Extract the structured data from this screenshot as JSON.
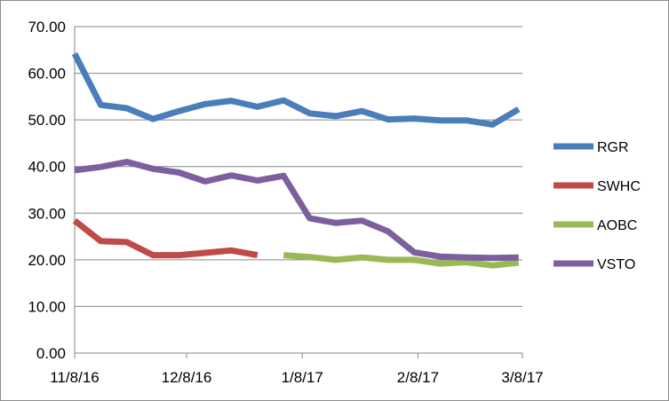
{
  "chart_data": {
    "type": "line",
    "title": "",
    "xlabel": "",
    "ylabel": "",
    "ylim": [
      0,
      70
    ],
    "yticks": [
      "0.00",
      "10.00",
      "20.00",
      "30.00",
      "40.00",
      "50.00",
      "60.00",
      "70.00"
    ],
    "xticks": [
      "11/8/16",
      "12/8/16",
      "1/8/17",
      "2/8/17",
      "3/8/17"
    ],
    "xtick_dates": [
      "2016-11-08",
      "2016-12-08",
      "2017-01-08",
      "2017-02-08",
      "2017-03-08"
    ],
    "xlim": [
      "2016-11-08",
      "2017-03-08"
    ],
    "grid": "horizontal",
    "legend_position": "right",
    "series": [
      {
        "name": "RGR",
        "color": "#4a7ebb",
        "points": [
          [
            "2016-11-08",
            64.2
          ],
          [
            "2016-11-15",
            53.2
          ],
          [
            "2016-11-22",
            52.5
          ],
          [
            "2016-11-29",
            50.2
          ],
          [
            "2016-12-06",
            51.9
          ],
          [
            "2016-12-13",
            53.4
          ],
          [
            "2016-12-20",
            54.1
          ],
          [
            "2016-12-27",
            52.8
          ],
          [
            "2017-01-03",
            54.2
          ],
          [
            "2017-01-10",
            51.4
          ],
          [
            "2017-01-17",
            50.8
          ],
          [
            "2017-01-24",
            51.9
          ],
          [
            "2017-01-31",
            50.1
          ],
          [
            "2017-02-07",
            50.3
          ],
          [
            "2017-02-14",
            49.9
          ],
          [
            "2017-02-21",
            49.9
          ],
          [
            "2017-02-28",
            49.0
          ],
          [
            "2017-03-07",
            52.3
          ]
        ]
      },
      {
        "name": "SWHC",
        "color": "#be4b48",
        "points": [
          [
            "2016-11-08",
            28.4
          ],
          [
            "2016-11-15",
            24.0
          ],
          [
            "2016-11-22",
            23.8
          ],
          [
            "2016-11-29",
            21.0
          ],
          [
            "2016-12-06",
            21.0
          ],
          [
            "2016-12-13",
            21.5
          ],
          [
            "2016-12-20",
            22.0
          ],
          [
            "2016-12-27",
            21.0
          ]
        ]
      },
      {
        "name": "AOBC",
        "color": "#98b954",
        "points": [
          [
            "2017-01-03",
            21.0
          ],
          [
            "2017-01-10",
            20.6
          ],
          [
            "2017-01-17",
            20.0
          ],
          [
            "2017-01-24",
            20.5
          ],
          [
            "2017-01-31",
            20.0
          ],
          [
            "2017-02-07",
            20.0
          ],
          [
            "2017-02-14",
            19.2
          ],
          [
            "2017-02-21",
            19.5
          ],
          [
            "2017-02-28",
            18.8
          ],
          [
            "2017-03-07",
            19.4
          ]
        ]
      },
      {
        "name": "VSTO",
        "color": "#7d5fa0",
        "points": [
          [
            "2016-11-08",
            39.2
          ],
          [
            "2016-11-15",
            39.9
          ],
          [
            "2016-11-22",
            41.0
          ],
          [
            "2016-11-29",
            39.5
          ],
          [
            "2016-12-06",
            38.7
          ],
          [
            "2016-12-13",
            36.8
          ],
          [
            "2016-12-20",
            38.1
          ],
          [
            "2016-12-27",
            37.0
          ],
          [
            "2017-01-03",
            38.0
          ],
          [
            "2017-01-10",
            28.9
          ],
          [
            "2017-01-17",
            27.9
          ],
          [
            "2017-01-24",
            28.4
          ],
          [
            "2017-01-31",
            26.1
          ],
          [
            "2017-02-07",
            21.6
          ],
          [
            "2017-02-14",
            20.7
          ],
          [
            "2017-02-21",
            20.5
          ],
          [
            "2017-02-28",
            20.4
          ],
          [
            "2017-03-07",
            20.5
          ]
        ]
      }
    ]
  }
}
